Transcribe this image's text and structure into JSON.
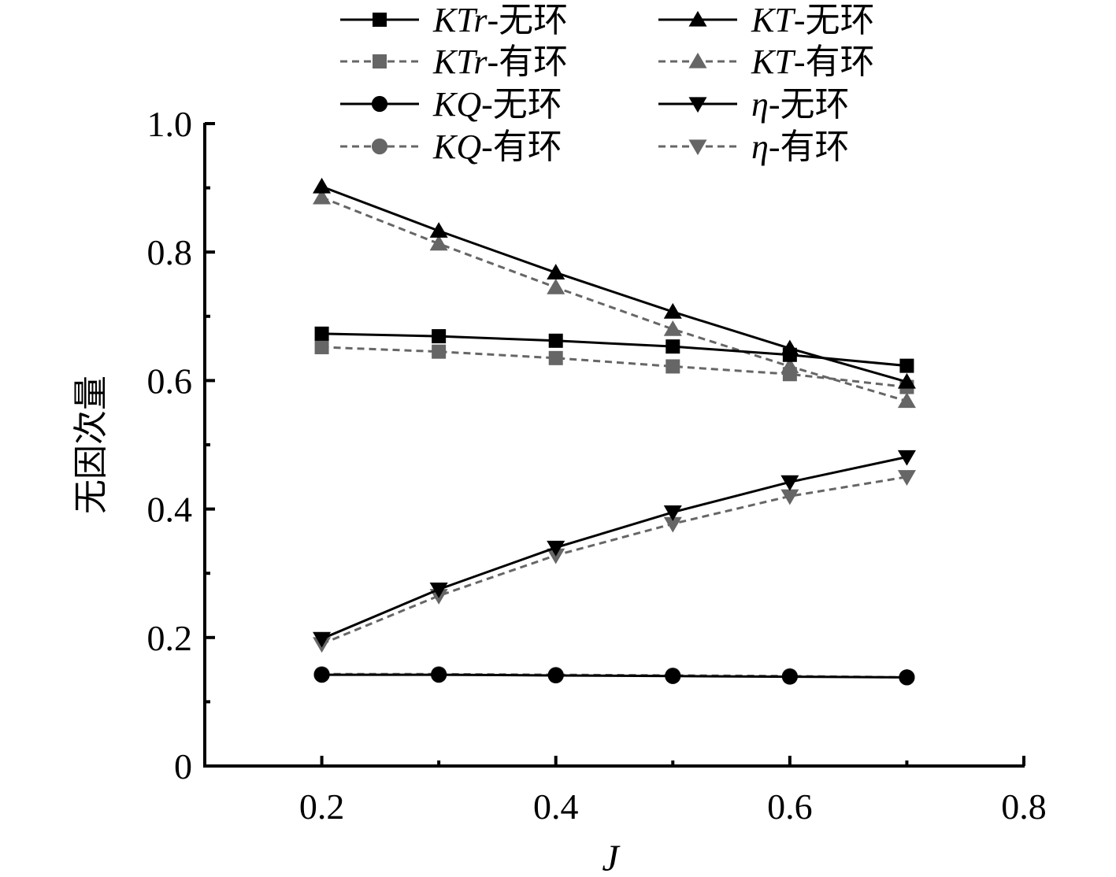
{
  "chart_data": {
    "type": "line",
    "xlabel": "J",
    "ylabel": "无因次量",
    "xlim": [
      0.1,
      0.8
    ],
    "ylim": [
      0,
      1.0
    ],
    "x_ticks": [
      0.2,
      0.4,
      0.6,
      0.8
    ],
    "x_tick_labels": [
      "0.2",
      "0.4",
      "0.6",
      "0.8"
    ],
    "y_ticks": [
      0,
      0.2,
      0.4,
      0.6,
      0.8,
      1.0
    ],
    "y_tick_labels": [
      "0",
      "0.2",
      "0.4",
      "0.6",
      "0.8",
      "1.0"
    ],
    "grid": false,
    "legend_position": "top",
    "x": [
      0.2,
      0.3,
      0.4,
      0.5,
      0.6,
      0.7
    ],
    "series": [
      {
        "name": "KTr-无环",
        "name_italic": "KTr",
        "name_rest": "-无环",
        "marker": "square",
        "dashed": false,
        "color": "#000000",
        "values": [
          0.673,
          0.669,
          0.662,
          0.653,
          0.64,
          0.623
        ]
      },
      {
        "name": "KTr-有环",
        "name_italic": "KTr",
        "name_rest": "-有环",
        "marker": "square",
        "dashed": true,
        "color": "#666666",
        "values": [
          0.652,
          0.645,
          0.635,
          0.622,
          0.61,
          0.59
        ]
      },
      {
        "name": "KQ-无环",
        "name_italic": "KQ",
        "name_rest": "-无环",
        "marker": "circle",
        "dashed": false,
        "color": "#000000",
        "values": [
          0.142,
          0.142,
          0.141,
          0.14,
          0.139,
          0.138
        ]
      },
      {
        "name": "KQ-有环",
        "name_italic": "KQ",
        "name_rest": "-有环",
        "marker": "circle",
        "dashed": true,
        "color": "#666666",
        "values": [
          0.143,
          0.143,
          0.142,
          0.141,
          0.14,
          0.138
        ]
      },
      {
        "name": "KT-无环",
        "name_italic": "KT",
        "name_rest": "-无环",
        "marker": "triangle-up",
        "dashed": false,
        "color": "#000000",
        "values": [
          0.902,
          0.833,
          0.768,
          0.707,
          0.65,
          0.598
        ]
      },
      {
        "name": "KT-有环",
        "name_italic": "KT",
        "name_rest": "-有环",
        "marker": "triangle-up",
        "dashed": true,
        "color": "#666666",
        "values": [
          0.885,
          0.813,
          0.745,
          0.68,
          0.622,
          0.568
        ]
      },
      {
        "name": "η-无环",
        "name_italic": "η",
        "name_rest": "-无环",
        "marker": "triangle-down",
        "dashed": false,
        "color": "#000000",
        "values": [
          0.198,
          0.275,
          0.34,
          0.395,
          0.442,
          0.481
        ]
      },
      {
        "name": "η-有环",
        "name_italic": "η",
        "name_rest": "-有环",
        "marker": "triangle-down",
        "dashed": true,
        "color": "#666666",
        "values": [
          0.19,
          0.265,
          0.328,
          0.377,
          0.42,
          0.45
        ]
      }
    ]
  }
}
